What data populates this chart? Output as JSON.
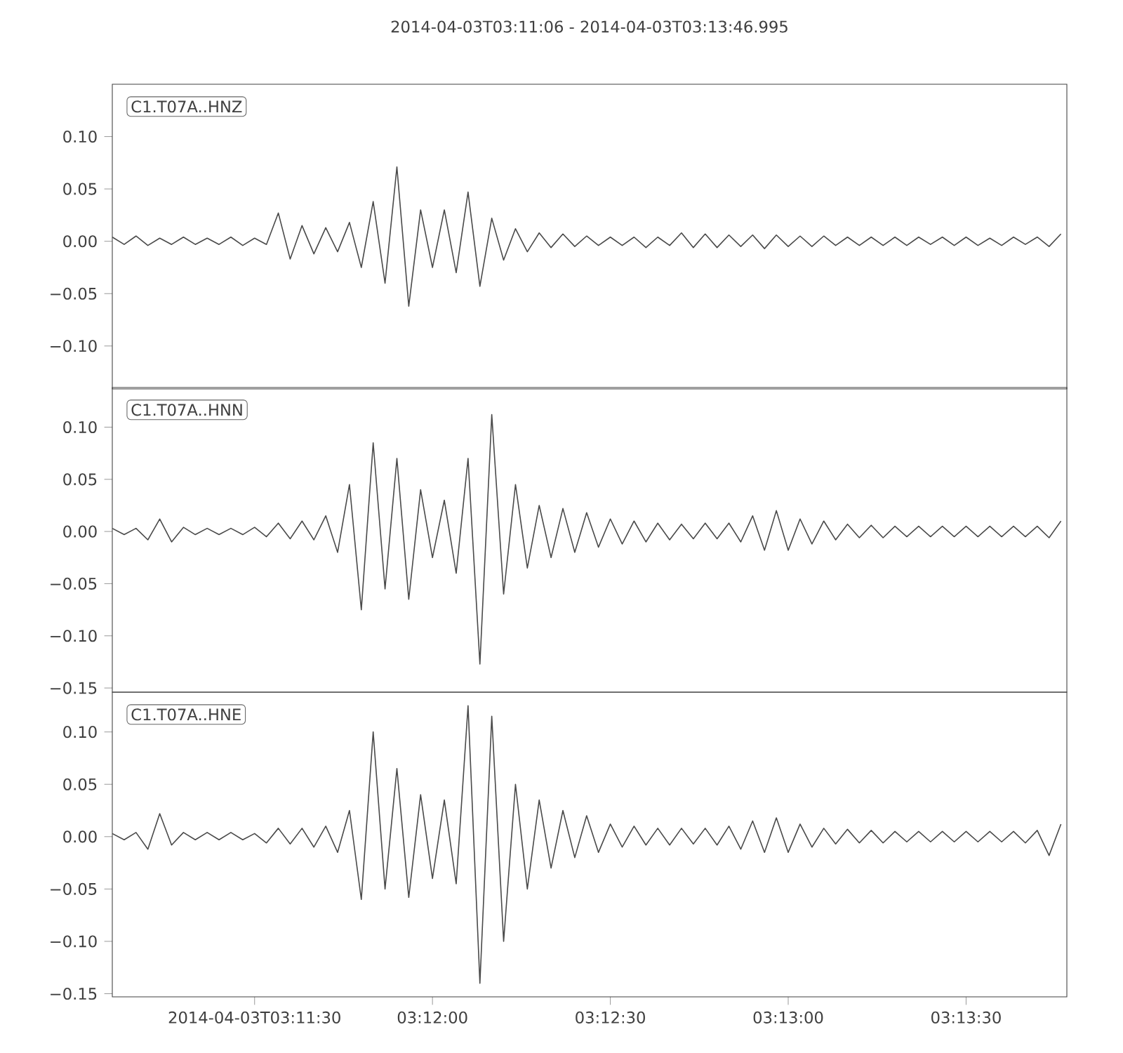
{
  "chart_data": [
    {
      "type": "line",
      "title": "2014-04-03T03:11:06  -  2014-04-03T03:13:46.995",
      "annotations": [
        "C1.T07A..HNZ"
      ],
      "tick_labels": "y",
      "xlim": [
        "2014-04-03T03:11:06",
        "2014-04-03T03:13:46.995"
      ],
      "ylim": [
        -0.141,
        0.15
      ],
      "yticks": [
        {
          "value": -0.1,
          "label": "−0.10"
        },
        {
          "value": -0.05,
          "label": "−0.05"
        },
        {
          "value": 0,
          "label": "0.00"
        },
        {
          "value": 0.05,
          "label": "0.05"
        },
        {
          "value": 0.1,
          "label": "0.10"
        }
      ],
      "x": [
        "2014-04-03T03:11:06",
        "2014-04-03T03:11:08",
        "2014-04-03T03:11:10",
        "2014-04-03T03:11:12",
        "2014-04-03T03:11:14",
        "2014-04-03T03:11:16",
        "2014-04-03T03:11:18",
        "2014-04-03T03:11:20",
        "2014-04-03T03:11:22",
        "2014-04-03T03:11:24",
        "2014-04-03T03:11:26",
        "2014-04-03T03:11:28",
        "2014-04-03T03:11:30",
        "2014-04-03T03:11:32",
        "2014-04-03T03:11:34",
        "2014-04-03T03:11:36",
        "2014-04-03T03:11:38",
        "2014-04-03T03:11:40",
        "2014-04-03T03:11:42",
        "2014-04-03T03:11:44",
        "2014-04-03T03:11:46",
        "2014-04-03T03:11:48",
        "2014-04-03T03:11:50",
        "2014-04-03T03:11:52",
        "2014-04-03T03:11:54",
        "2014-04-03T03:11:56",
        "2014-04-03T03:11:58",
        "2014-04-03T03:12:00",
        "2014-04-03T03:12:02",
        "2014-04-03T03:12:04",
        "2014-04-03T03:12:06",
        "2014-04-03T03:12:08",
        "2014-04-03T03:12:10",
        "2014-04-03T03:12:12",
        "2014-04-03T03:12:14",
        "2014-04-03T03:12:16",
        "2014-04-03T03:12:18",
        "2014-04-03T03:12:20",
        "2014-04-03T03:12:22",
        "2014-04-03T03:12:24",
        "2014-04-03T03:12:26",
        "2014-04-03T03:12:28",
        "2014-04-03T03:12:30",
        "2014-04-03T03:12:32",
        "2014-04-03T03:12:34",
        "2014-04-03T03:12:36",
        "2014-04-03T03:12:38",
        "2014-04-03T03:12:40",
        "2014-04-03T03:12:42",
        "2014-04-03T03:12:44",
        "2014-04-03T03:12:46",
        "2014-04-03T03:12:48",
        "2014-04-03T03:12:50",
        "2014-04-03T03:12:52",
        "2014-04-03T03:12:54",
        "2014-04-03T03:12:56",
        "2014-04-03T03:12:58",
        "2014-04-03T03:13:00",
        "2014-04-03T03:13:02",
        "2014-04-03T03:13:04",
        "2014-04-03T03:13:06",
        "2014-04-03T03:13:08",
        "2014-04-03T03:13:10",
        "2014-04-03T03:13:12",
        "2014-04-03T03:13:14",
        "2014-04-03T03:13:16",
        "2014-04-03T03:13:18",
        "2014-04-03T03:13:20",
        "2014-04-03T03:13:22",
        "2014-04-03T03:13:24",
        "2014-04-03T03:13:26",
        "2014-04-03T03:13:28",
        "2014-04-03T03:13:30",
        "2014-04-03T03:13:32",
        "2014-04-03T03:13:34",
        "2014-04-03T03:13:36",
        "2014-04-03T03:13:38",
        "2014-04-03T03:13:40",
        "2014-04-03T03:13:42",
        "2014-04-03T03:13:44",
        "2014-04-03T03:13:46"
      ],
      "series": [
        {
          "color": "#4a4a4a",
          "values": [
            0.004,
            -0.003,
            0.005,
            -0.004,
            0.003,
            -0.003,
            0.004,
            -0.003,
            0.003,
            -0.003,
            0.004,
            -0.004,
            0.003,
            -0.003,
            0.027,
            -0.017,
            0.015,
            -0.012,
            0.013,
            -0.01,
            0.018,
            -0.025,
            0.038,
            -0.04,
            0.071,
            -0.062,
            0.03,
            -0.025,
            0.03,
            -0.03,
            0.047,
            -0.043,
            0.022,
            -0.018,
            0.012,
            -0.01,
            0.008,
            -0.006,
            0.007,
            -0.005,
            0.005,
            -0.004,
            0.004,
            -0.004,
            0.004,
            -0.006,
            0.004,
            -0.004,
            0.008,
            -0.006,
            0.007,
            -0.006,
            0.006,
            -0.005,
            0.006,
            -0.007,
            0.006,
            -0.005,
            0.005,
            -0.005,
            0.005,
            -0.004,
            0.004,
            -0.004,
            0.004,
            -0.004,
            0.004,
            -0.004,
            0.004,
            -0.003,
            0.004,
            -0.004,
            0.004,
            -0.004,
            0.003,
            -0.004,
            0.004,
            -0.003,
            0.004,
            -0.005,
            0.007
          ]
        }
      ]
    },
    {
      "type": "line",
      "annotations": [
        "C1.T07A..HNN"
      ],
      "tick_labels": "y",
      "xlim": [
        "2014-04-03T03:11:06",
        "2014-04-03T03:13:46.995"
      ],
      "ylim": [
        -0.154,
        0.138
      ],
      "yticks": [
        {
          "value": -0.15,
          "label": "−0.15"
        },
        {
          "value": -0.1,
          "label": "−0.10"
        },
        {
          "value": -0.05,
          "label": "−0.05"
        },
        {
          "value": 0,
          "label": "0.00"
        },
        {
          "value": 0.05,
          "label": "0.05"
        },
        {
          "value": 0.1,
          "label": "0.10"
        }
      ],
      "x": [
        "2014-04-03T03:11:06",
        "2014-04-03T03:11:08",
        "2014-04-03T03:11:10",
        "2014-04-03T03:11:12",
        "2014-04-03T03:11:14",
        "2014-04-03T03:11:16",
        "2014-04-03T03:11:18",
        "2014-04-03T03:11:20",
        "2014-04-03T03:11:22",
        "2014-04-03T03:11:24",
        "2014-04-03T03:11:26",
        "2014-04-03T03:11:28",
        "2014-04-03T03:11:30",
        "2014-04-03T03:11:32",
        "2014-04-03T03:11:34",
        "2014-04-03T03:11:36",
        "2014-04-03T03:11:38",
        "2014-04-03T03:11:40",
        "2014-04-03T03:11:42",
        "2014-04-03T03:11:44",
        "2014-04-03T03:11:46",
        "2014-04-03T03:11:48",
        "2014-04-03T03:11:50",
        "2014-04-03T03:11:52",
        "2014-04-03T03:11:54",
        "2014-04-03T03:11:56",
        "2014-04-03T03:11:58",
        "2014-04-03T03:12:00",
        "2014-04-03T03:12:02",
        "2014-04-03T03:12:04",
        "2014-04-03T03:12:06",
        "2014-04-03T03:12:08",
        "2014-04-03T03:12:10",
        "2014-04-03T03:12:12",
        "2014-04-03T03:12:14",
        "2014-04-03T03:12:16",
        "2014-04-03T03:12:18",
        "2014-04-03T03:12:20",
        "2014-04-03T03:12:22",
        "2014-04-03T03:12:24",
        "2014-04-03T03:12:26",
        "2014-04-03T03:12:28",
        "2014-04-03T03:12:30",
        "2014-04-03T03:12:32",
        "2014-04-03T03:12:34",
        "2014-04-03T03:12:36",
        "2014-04-03T03:12:38",
        "2014-04-03T03:12:40",
        "2014-04-03T03:12:42",
        "2014-04-03T03:12:44",
        "2014-04-03T03:12:46",
        "2014-04-03T03:12:48",
        "2014-04-03T03:12:50",
        "2014-04-03T03:12:52",
        "2014-04-03T03:12:54",
        "2014-04-03T03:12:56",
        "2014-04-03T03:12:58",
        "2014-04-03T03:13:00",
        "2014-04-03T03:13:02",
        "2014-04-03T03:13:04",
        "2014-04-03T03:13:06",
        "2014-04-03T03:13:08",
        "2014-04-03T03:13:10",
        "2014-04-03T03:13:12",
        "2014-04-03T03:13:14",
        "2014-04-03T03:13:16",
        "2014-04-03T03:13:18",
        "2014-04-03T03:13:20",
        "2014-04-03T03:13:22",
        "2014-04-03T03:13:24",
        "2014-04-03T03:13:26",
        "2014-04-03T03:13:28",
        "2014-04-03T03:13:30",
        "2014-04-03T03:13:32",
        "2014-04-03T03:13:34",
        "2014-04-03T03:13:36",
        "2014-04-03T03:13:38",
        "2014-04-03T03:13:40",
        "2014-04-03T03:13:42",
        "2014-04-03T03:13:44",
        "2014-04-03T03:13:46"
      ],
      "series": [
        {
          "color": "#4a4a4a",
          "values": [
            0.003,
            -0.003,
            0.003,
            -0.008,
            0.012,
            -0.01,
            0.004,
            -0.003,
            0.003,
            -0.003,
            0.003,
            -0.003,
            0.004,
            -0.005,
            0.008,
            -0.007,
            0.01,
            -0.008,
            0.015,
            -0.02,
            0.045,
            -0.075,
            0.085,
            -0.055,
            0.07,
            -0.065,
            0.04,
            -0.025,
            0.03,
            -0.04,
            0.07,
            -0.127,
            0.112,
            -0.06,
            0.045,
            -0.035,
            0.025,
            -0.025,
            0.022,
            -0.02,
            0.018,
            -0.015,
            0.012,
            -0.012,
            0.01,
            -0.01,
            0.008,
            -0.008,
            0.007,
            -0.007,
            0.008,
            -0.007,
            0.008,
            -0.01,
            0.015,
            -0.018,
            0.02,
            -0.018,
            0.012,
            -0.012,
            0.01,
            -0.008,
            0.007,
            -0.006,
            0.006,
            -0.006,
            0.005,
            -0.005,
            0.005,
            -0.005,
            0.005,
            -0.005,
            0.005,
            -0.005,
            0.005,
            -0.005,
            0.005,
            -0.005,
            0.005,
            -0.006,
            0.01
          ]
        }
      ]
    },
    {
      "type": "line",
      "annotations": [
        "C1.T07A..HNE"
      ],
      "xlim": [
        "2014-04-03T03:11:06",
        "2014-04-03T03:13:46.995"
      ],
      "ylim": [
        -0.153,
        0.138
      ],
      "xticks": [
        {
          "value": "2014-04-03T03:11:30",
          "label": "2014-04-03T03:11:30"
        },
        {
          "value": "2014-04-03T03:12:00",
          "label": "03:12:00"
        },
        {
          "value": "2014-04-03T03:12:30",
          "label": "03:12:30"
        },
        {
          "value": "2014-04-03T03:13:00",
          "label": "03:13:00"
        },
        {
          "value": "2014-04-03T03:13:30",
          "label": "03:13:30"
        }
      ],
      "yticks": [
        {
          "value": -0.15,
          "label": "−0.15"
        },
        {
          "value": -0.1,
          "label": "−0.10"
        },
        {
          "value": -0.05,
          "label": "−0.05"
        },
        {
          "value": 0,
          "label": "0.00"
        },
        {
          "value": 0.05,
          "label": "0.05"
        },
        {
          "value": 0.1,
          "label": "0.10"
        }
      ],
      "x": [
        "2014-04-03T03:11:06",
        "2014-04-03T03:11:08",
        "2014-04-03T03:11:10",
        "2014-04-03T03:11:12",
        "2014-04-03T03:11:14",
        "2014-04-03T03:11:16",
        "2014-04-03T03:11:18",
        "2014-04-03T03:11:20",
        "2014-04-03T03:11:22",
        "2014-04-03T03:11:24",
        "2014-04-03T03:11:26",
        "2014-04-03T03:11:28",
        "2014-04-03T03:11:30",
        "2014-04-03T03:11:32",
        "2014-04-03T03:11:34",
        "2014-04-03T03:11:36",
        "2014-04-03T03:11:38",
        "2014-04-03T03:11:40",
        "2014-04-03T03:11:42",
        "2014-04-03T03:11:44",
        "2014-04-03T03:11:46",
        "2014-04-03T03:11:48",
        "2014-04-03T03:11:50",
        "2014-04-03T03:11:52",
        "2014-04-03T03:11:54",
        "2014-04-03T03:11:56",
        "2014-04-03T03:11:58",
        "2014-04-03T03:12:00",
        "2014-04-03T03:12:02",
        "2014-04-03T03:12:04",
        "2014-04-03T03:12:06",
        "2014-04-03T03:12:08",
        "2014-04-03T03:12:10",
        "2014-04-03T03:12:12",
        "2014-04-03T03:12:14",
        "2014-04-03T03:12:16",
        "2014-04-03T03:12:18",
        "2014-04-03T03:12:20",
        "2014-04-03T03:12:22",
        "2014-04-03T03:12:24",
        "2014-04-03T03:12:26",
        "2014-04-03T03:12:28",
        "2014-04-03T03:12:30",
        "2014-04-03T03:12:32",
        "2014-04-03T03:12:34",
        "2014-04-03T03:12:36",
        "2014-04-03T03:12:38",
        "2014-04-03T03:12:40",
        "2014-04-03T03:12:42",
        "2014-04-03T03:12:44",
        "2014-04-03T03:12:46",
        "2014-04-03T03:12:48",
        "2014-04-03T03:12:50",
        "2014-04-03T03:12:52",
        "2014-04-03T03:12:54",
        "2014-04-03T03:12:56",
        "2014-04-03T03:12:58",
        "2014-04-03T03:13:00",
        "2014-04-03T03:13:02",
        "2014-04-03T03:13:04",
        "2014-04-03T03:13:06",
        "2014-04-03T03:13:08",
        "2014-04-03T03:13:10",
        "2014-04-03T03:13:12",
        "2014-04-03T03:13:14",
        "2014-04-03T03:13:16",
        "2014-04-03T03:13:18",
        "2014-04-03T03:13:20",
        "2014-04-03T03:13:22",
        "2014-04-03T03:13:24",
        "2014-04-03T03:13:26",
        "2014-04-03T03:13:28",
        "2014-04-03T03:13:30",
        "2014-04-03T03:13:32",
        "2014-04-03T03:13:34",
        "2014-04-03T03:13:36",
        "2014-04-03T03:13:38",
        "2014-04-03T03:13:40",
        "2014-04-03T03:13:42",
        "2014-04-03T03:13:44",
        "2014-04-03T03:13:46"
      ],
      "series": [
        {
          "color": "#4a4a4a",
          "values": [
            0.003,
            -0.003,
            0.004,
            -0.012,
            0.022,
            -0.008,
            0.004,
            -0.003,
            0.004,
            -0.003,
            0.004,
            -0.003,
            0.003,
            -0.006,
            0.008,
            -0.007,
            0.008,
            -0.01,
            0.01,
            -0.015,
            0.025,
            -0.06,
            0.1,
            -0.05,
            0.065,
            -0.058,
            0.04,
            -0.04,
            0.035,
            -0.045,
            0.125,
            -0.14,
            0.115,
            -0.1,
            0.05,
            -0.05,
            0.035,
            -0.03,
            0.025,
            -0.02,
            0.02,
            -0.015,
            0.012,
            -0.01,
            0.01,
            -0.008,
            0.008,
            -0.008,
            0.008,
            -0.007,
            0.008,
            -0.008,
            0.01,
            -0.012,
            0.015,
            -0.015,
            0.018,
            -0.015,
            0.012,
            -0.01,
            0.008,
            -0.007,
            0.007,
            -0.006,
            0.006,
            -0.006,
            0.005,
            -0.005,
            0.005,
            -0.005,
            0.005,
            -0.005,
            0.005,
            -0.005,
            0.005,
            -0.005,
            0.005,
            -0.006,
            0.006,
            -0.018,
            0.012
          ]
        }
      ]
    }
  ]
}
